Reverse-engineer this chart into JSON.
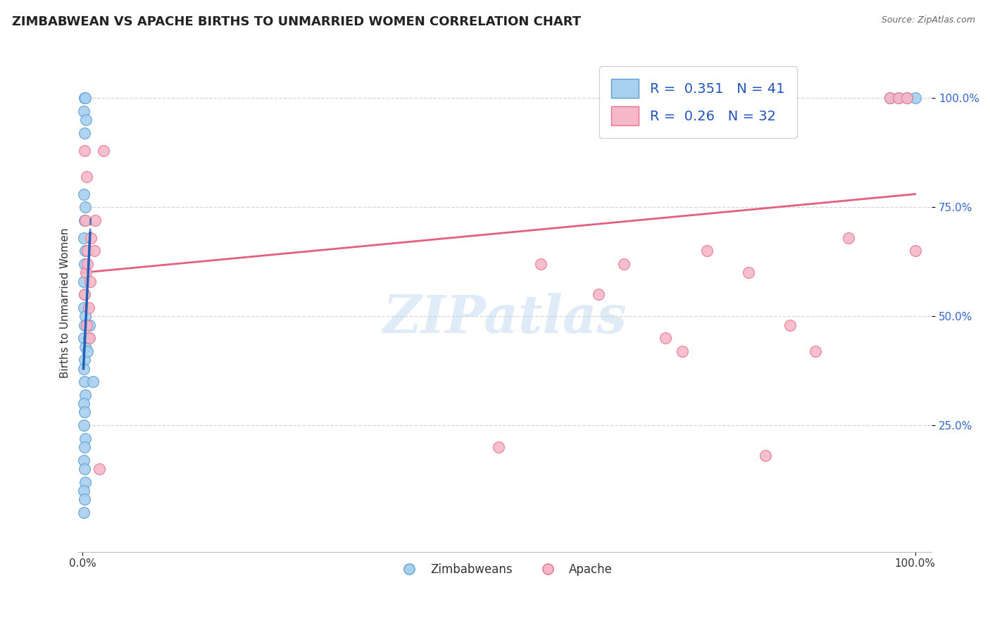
{
  "title": "ZIMBABWEAN VS APACHE BIRTHS TO UNMARRIED WOMEN CORRELATION CHART",
  "source": "Source: ZipAtlas.com",
  "ylabel": "Births to Unmarried Women",
  "watermark": "ZIPatlas",
  "legend_blue_label": "Zimbabweans",
  "legend_pink_label": "Apache",
  "R_blue": 0.351,
  "N_blue": 41,
  "R_pink": 0.26,
  "N_pink": 32,
  "blue_color": "#A8CFEE",
  "pink_color": "#F5B8C8",
  "blue_edge_color": "#5A9ED4",
  "pink_edge_color": "#E87090",
  "blue_line_color": "#2060B8",
  "pink_line_color": "#E06080",
  "blue_scatter": [
    [
      0.002,
      1.0
    ],
    [
      0.003,
      1.0
    ],
    [
      0.001,
      0.97
    ],
    [
      0.004,
      0.95
    ],
    [
      0.002,
      0.92
    ],
    [
      0.001,
      0.78
    ],
    [
      0.003,
      0.75
    ],
    [
      0.002,
      0.72
    ],
    [
      0.001,
      0.68
    ],
    [
      0.003,
      0.65
    ],
    [
      0.002,
      0.62
    ],
    [
      0.001,
      0.58
    ],
    [
      0.002,
      0.55
    ],
    [
      0.001,
      0.52
    ],
    [
      0.003,
      0.5
    ],
    [
      0.002,
      0.48
    ],
    [
      0.001,
      0.45
    ],
    [
      0.003,
      0.43
    ],
    [
      0.002,
      0.4
    ],
    [
      0.001,
      0.38
    ],
    [
      0.002,
      0.35
    ],
    [
      0.003,
      0.32
    ],
    [
      0.001,
      0.3
    ],
    [
      0.002,
      0.28
    ],
    [
      0.001,
      0.25
    ],
    [
      0.003,
      0.22
    ],
    [
      0.002,
      0.2
    ],
    [
      0.001,
      0.17
    ],
    [
      0.002,
      0.15
    ],
    [
      0.003,
      0.12
    ],
    [
      0.001,
      0.1
    ],
    [
      0.002,
      0.08
    ],
    [
      0.001,
      0.05
    ],
    [
      0.008,
      0.48
    ],
    [
      0.007,
      0.45
    ],
    [
      0.006,
      0.42
    ],
    [
      0.012,
      0.35
    ],
    [
      1.0,
      1.0
    ],
    [
      0.99,
      1.0
    ],
    [
      0.98,
      1.0
    ],
    [
      0.97,
      1.0
    ]
  ],
  "pink_scatter": [
    [
      0.002,
      0.88
    ],
    [
      0.003,
      0.72
    ],
    [
      0.005,
      0.82
    ],
    [
      0.006,
      0.65
    ],
    [
      0.004,
      0.6
    ],
    [
      0.002,
      0.55
    ],
    [
      0.007,
      0.52
    ],
    [
      0.005,
      0.48
    ],
    [
      0.008,
      0.45
    ],
    [
      0.006,
      0.62
    ],
    [
      0.01,
      0.68
    ],
    [
      0.009,
      0.58
    ],
    [
      0.015,
      0.72
    ],
    [
      0.014,
      0.65
    ],
    [
      0.02,
      0.15
    ],
    [
      0.025,
      0.88
    ],
    [
      0.55,
      0.62
    ],
    [
      0.62,
      0.55
    ],
    [
      0.65,
      0.62
    ],
    [
      0.7,
      0.45
    ],
    [
      0.72,
      0.42
    ],
    [
      0.75,
      0.65
    ],
    [
      0.8,
      0.6
    ],
    [
      0.82,
      0.18
    ],
    [
      0.85,
      0.48
    ],
    [
      0.88,
      0.42
    ],
    [
      0.92,
      0.68
    ],
    [
      0.97,
      1.0
    ],
    [
      0.98,
      1.0
    ],
    [
      0.99,
      1.0
    ],
    [
      1.0,
      0.65
    ],
    [
      0.5,
      0.2
    ]
  ],
  "pink_trendline": [
    0.0,
    1.0,
    0.6,
    0.78
  ],
  "blue_trendline_solid": [
    0.002,
    0.012,
    0.73,
    0.38
  ],
  "blue_trendline_dashed": [
    0.002,
    0.012,
    0.73,
    0.38
  ],
  "xlim": [
    0.0,
    1.02
  ],
  "ylim": [
    0.0,
    1.08
  ]
}
